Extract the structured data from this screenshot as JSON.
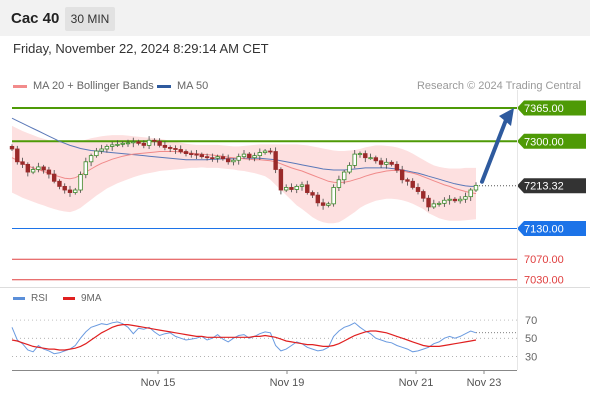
{
  "header": {
    "instrument": "Cac 40",
    "interval": "30 MIN",
    "datetime": "Friday, November 22, 2024 8:29:14 AM CET"
  },
  "legend": {
    "ma20": {
      "label": "MA 20 + Bollinger Bands",
      "color": "#f28b8b"
    },
    "ma50": {
      "label": "MA 50",
      "color": "#2e5a9e"
    },
    "credit": "Research © 2024 Trading Central"
  },
  "rsi_legend": {
    "rsi": {
      "label": "RSI",
      "color": "#5b8fd9"
    },
    "ma9": {
      "label": "9MA",
      "color": "#e02020"
    }
  },
  "chart_data": [
    {
      "type": "candlestick",
      "ylim": [
        7010,
        7400
      ],
      "x_ticks": [
        "Nov 15",
        "Nov 19",
        "Nov 21",
        "Nov 23"
      ],
      "last_price": 7213.32,
      "levels": [
        {
          "label": "7365.00",
          "value": 7365,
          "kind": "resistance",
          "color": "#4e9a06"
        },
        {
          "label": "7300.00",
          "value": 7300,
          "kind": "resistance",
          "color": "#4e9a06"
        },
        {
          "label": "7213.32",
          "value": 7213.32,
          "kind": "last",
          "color": "#333333"
        },
        {
          "label": "7130.00",
          "value": 7130,
          "kind": "pivot",
          "color": "#1c73e8"
        },
        {
          "label": "7070.00",
          "value": 7070,
          "kind": "support",
          "color": "#e04040"
        },
        {
          "label": "7030.00",
          "value": 7030,
          "kind": "support",
          "color": "#e04040"
        }
      ],
      "close": [
        7285,
        7260,
        7255,
        7240,
        7245,
        7250,
        7244,
        7236,
        7222,
        7212,
        7205,
        7200,
        7205,
        7235,
        7260,
        7272,
        7281,
        7285,
        7290,
        7293,
        7294,
        7296,
        7297,
        7299,
        7296,
        7292,
        7302,
        7300,
        7292,
        7288,
        7286,
        7284,
        7280,
        7276,
        7275,
        7274,
        7270,
        7268,
        7267,
        7270,
        7266,
        7260,
        7263,
        7270,
        7275,
        7268,
        7272,
        7278,
        7281,
        7280,
        7245,
        7205,
        7210,
        7206,
        7212,
        7215,
        7200,
        7195,
        7180,
        7175,
        7178,
        7210,
        7225,
        7240,
        7253,
        7275,
        7276,
        7268,
        7268,
        7262,
        7255,
        7259,
        7255,
        7244,
        7225,
        7222,
        7210,
        7202,
        7189,
        7172,
        7178,
        7179,
        7185,
        7187,
        7184,
        7187,
        7192,
        7205,
        7214
      ],
      "bb_upper": [
        7330,
        7325,
        7320,
        7316,
        7312,
        7308,
        7305,
        7302,
        7300,
        7298,
        7297,
        7297,
        7298,
        7300,
        7303,
        7306,
        7308,
        7310,
        7311,
        7312,
        7312,
        7312,
        7311,
        7310,
        7309,
        7308,
        7307,
        7306,
        7305,
        7303,
        7301,
        7299,
        7297,
        7295,
        7294,
        7293,
        7293,
        7293,
        7293,
        7293,
        7292,
        7291,
        7290,
        7290,
        7291,
        7292,
        7293,
        7294,
        7294,
        7294,
        7294,
        7294,
        7294,
        7294,
        7294,
        7293,
        7292,
        7290,
        7288,
        7286,
        7284,
        7282,
        7281,
        7281,
        7282,
        7283,
        7285,
        7288,
        7290,
        7292,
        7292,
        7291,
        7290,
        7288,
        7285,
        7281,
        7276,
        7270,
        7264,
        7258,
        7253,
        7250,
        7248,
        7247,
        7247,
        7247,
        7248,
        7248,
        7248
      ],
      "ma20": [
        7268,
        7263,
        7257,
        7252,
        7248,
        7245,
        7241,
        7238,
        7234,
        7231,
        7228,
        7227,
        7229,
        7234,
        7240,
        7246,
        7252,
        7257,
        7261,
        7265,
        7268,
        7271,
        7273,
        7275,
        7276,
        7277,
        7278,
        7279,
        7280,
        7280,
        7280,
        7280,
        7279,
        7278,
        7277,
        7276,
        7275,
        7274,
        7273,
        7272,
        7271,
        7269,
        7268,
        7267,
        7266,
        7265,
        7264,
        7264,
        7263,
        7262,
        7260,
        7256,
        7252,
        7248,
        7245,
        7242,
        7238,
        7234,
        7230,
        7226,
        7222,
        7220,
        7219,
        7220,
        7222,
        7225,
        7228,
        7232,
        7235,
        7238,
        7240,
        7242,
        7243,
        7243,
        7242,
        7240,
        7238,
        7235,
        7231,
        7227,
        7223,
        7219,
        7215,
        7212,
        7208,
        7205,
        7202,
        7200,
        7198
      ],
      "bb_lower": [
        7200,
        7195,
        7190,
        7186,
        7182,
        7178,
        7175,
        7171,
        7168,
        7165,
        7163,
        7162,
        7165,
        7170,
        7178,
        7186,
        7194,
        7201,
        7208,
        7213,
        7218,
        7222,
        7226,
        7230,
        7233,
        7236,
        7238,
        7240,
        7242,
        7243,
        7244,
        7245,
        7246,
        7247,
        7248,
        7248,
        7249,
        7248,
        7248,
        7248,
        7247,
        7246,
        7245,
        7243,
        7242,
        7240,
        7238,
        7235,
        7232,
        7225,
        7215,
        7205,
        7195,
        7185,
        7175,
        7168,
        7160,
        7152,
        7146,
        7142,
        7140,
        7140,
        7142,
        7148,
        7155,
        7162,
        7170,
        7176,
        7180,
        7184,
        7186,
        7188,
        7188,
        7187,
        7185,
        7182,
        7178,
        7173,
        7168,
        7160,
        7155,
        7150,
        7147,
        7145,
        7145,
        7145,
        7146,
        7147,
        7148
      ],
      "ma50": [
        7345,
        7340,
        7335,
        7330,
        7325,
        7320,
        7315,
        7310,
        7305,
        7300,
        7296,
        7292,
        7289,
        7286,
        7284,
        7282,
        7281,
        7280,
        7279,
        7278,
        7277,
        7276,
        7275,
        7274,
        7273,
        7272,
        7271,
        7270,
        7269,
        7268,
        7267,
        7266,
        7265,
        7264,
        7264,
        7264,
        7264,
        7264,
        7265,
        7265,
        7266,
        7266,
        7266,
        7266,
        7267,
        7267,
        7267,
        7267,
        7266,
        7265,
        7264,
        7262,
        7260,
        7258,
        7256,
        7254,
        7252,
        7250,
        7248,
        7246,
        7245,
        7244,
        7244,
        7244,
        7245,
        7246,
        7247,
        7248,
        7248,
        7248,
        7248,
        7248,
        7247,
        7246,
        7244,
        7242,
        7240,
        7238,
        7235,
        7232,
        7229,
        7226,
        7223,
        7220,
        7217,
        7215,
        7213,
        7212,
        7212
      ]
    },
    {
      "type": "line",
      "name": "RSI",
      "ylim": [
        15,
        80
      ],
      "y_ticks": [
        70,
        50,
        30
      ],
      "rsi": [
        62,
        48,
        44,
        37,
        35,
        42,
        38,
        36,
        33,
        34,
        36,
        38,
        42,
        50,
        57,
        62,
        64,
        66,
        65,
        67,
        68,
        66,
        62,
        55,
        61,
        60,
        62,
        57,
        53,
        55,
        56,
        52,
        50,
        48,
        49,
        50,
        52,
        48,
        50,
        54,
        49,
        46,
        50,
        53,
        54,
        50,
        52,
        55,
        57,
        56,
        42,
        36,
        38,
        42,
        46,
        44,
        40,
        38,
        36,
        37,
        40,
        52,
        58,
        62,
        64,
        67,
        62,
        58,
        55,
        50,
        48,
        46,
        45,
        42,
        40,
        38,
        35,
        36,
        38,
        40,
        44,
        46,
        50,
        52,
        50,
        52,
        55,
        58,
        56
      ],
      "ma9": [
        48,
        47,
        45,
        43,
        41,
        40,
        39,
        38,
        38,
        37,
        37,
        38,
        39,
        41,
        44,
        48,
        52,
        56,
        59,
        62,
        64,
        65,
        65,
        64,
        63,
        62,
        61,
        60,
        59,
        58,
        57,
        56,
        55,
        54,
        53,
        52,
        52,
        51,
        51,
        51,
        51,
        51,
        51,
        51,
        51,
        51,
        52,
        52,
        53,
        52,
        51,
        49,
        47,
        46,
        45,
        44,
        43,
        43,
        42,
        41,
        41,
        42,
        44,
        47,
        50,
        53,
        55,
        57,
        58,
        58,
        57,
        56,
        54,
        52,
        50,
        48,
        46,
        44,
        42,
        41,
        41,
        41,
        42,
        43,
        44,
        45,
        46,
        47,
        48
      ]
    }
  ]
}
